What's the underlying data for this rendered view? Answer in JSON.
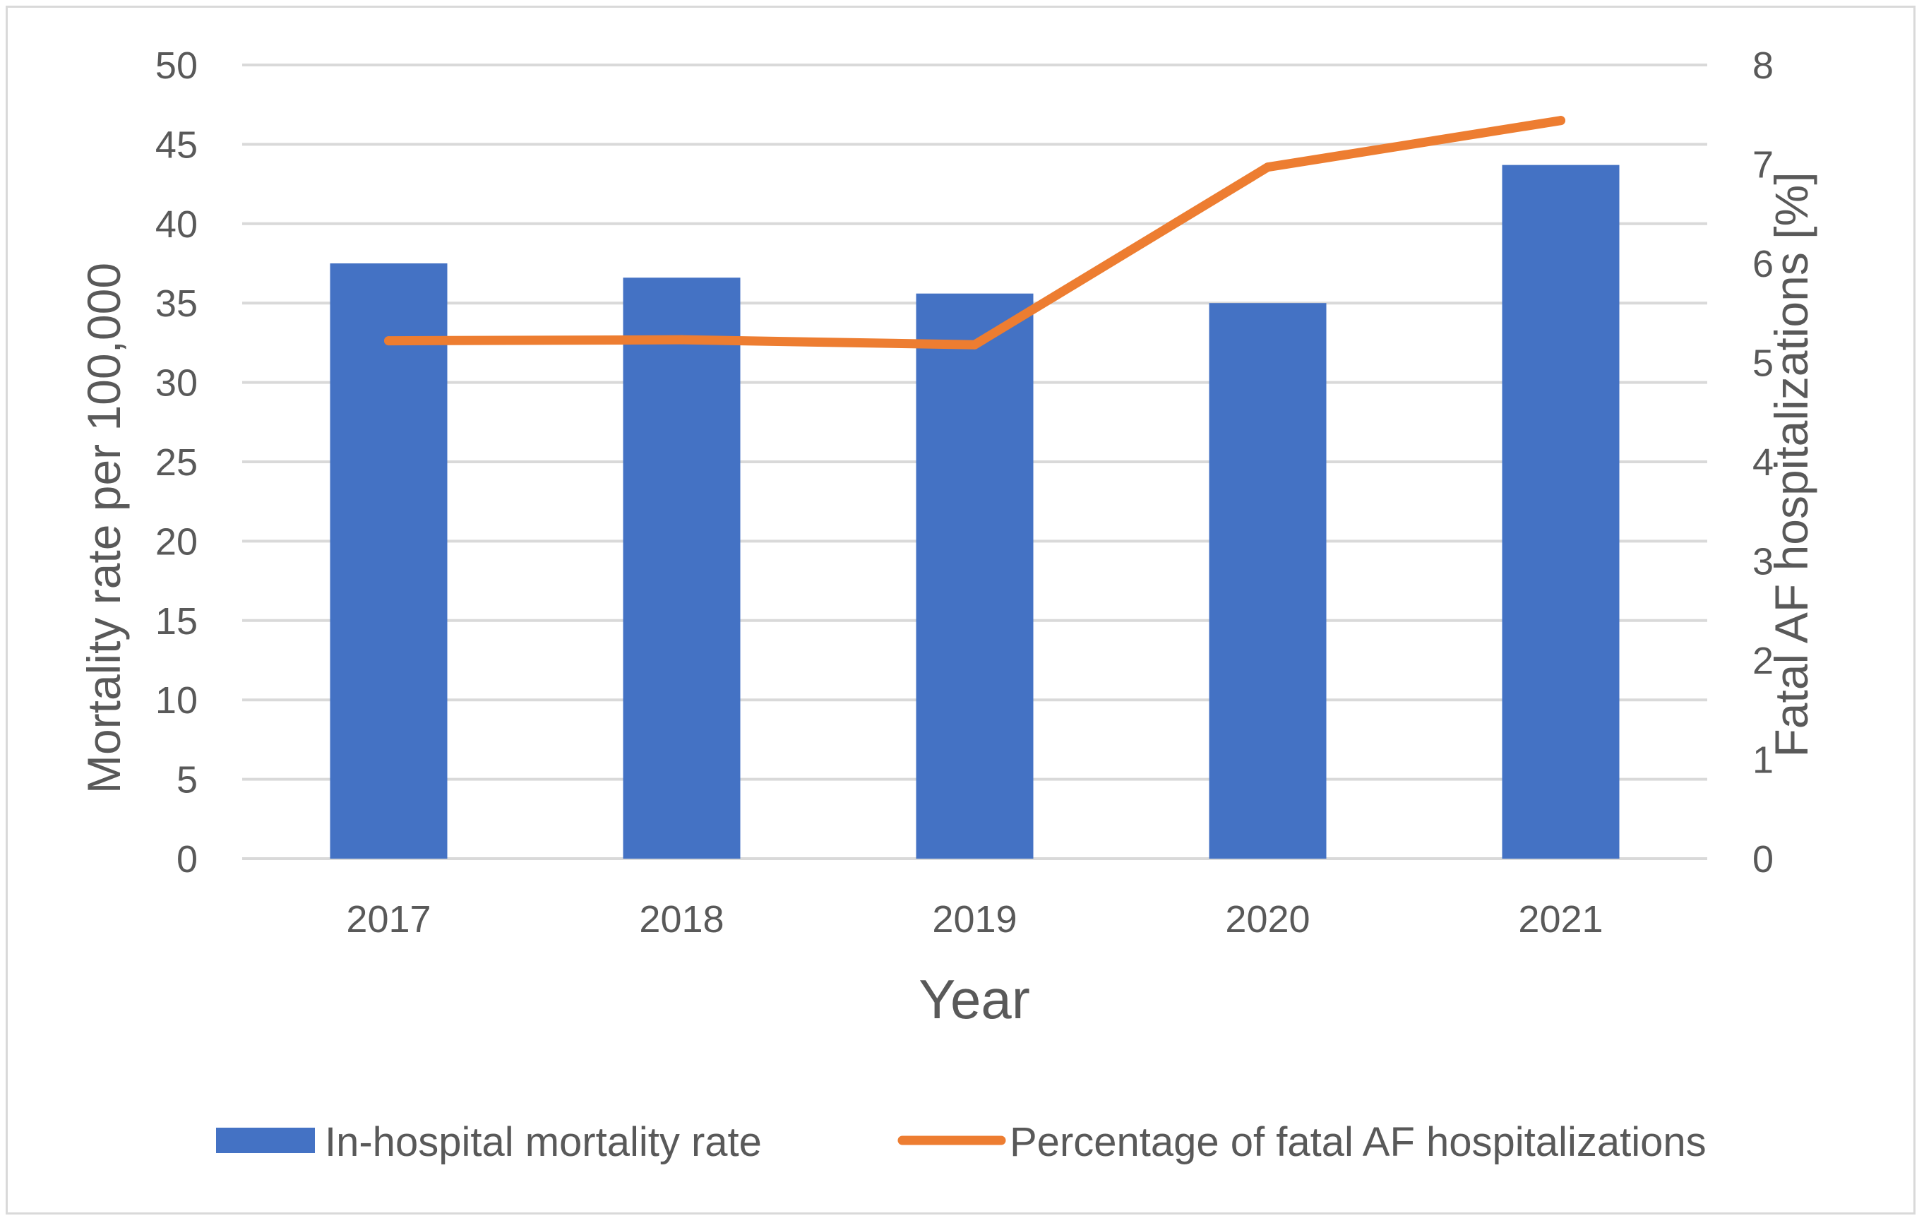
{
  "chart_data": {
    "type": "bar",
    "categories": [
      "2017",
      "2018",
      "2019",
      "2020",
      "2021"
    ],
    "series": [
      {
        "name": "In-hospital mortality rate",
        "type": "bar",
        "axis": "left",
        "color": "#4472C4",
        "values": [
          37.5,
          36.6,
          35.6,
          35.0,
          43.7
        ]
      },
      {
        "name": "Percentage of fatal AF hospitalizations",
        "type": "line",
        "axis": "right",
        "color": "#ED7D31",
        "values": [
          5.22,
          5.23,
          5.18,
          6.97,
          7.44
        ]
      }
    ],
    "title": "",
    "xlabel": "Year",
    "ylabel": "Mortality rate per 100,000",
    "y2label": "Fatal AF hospitalizations [%]",
    "ylim": [
      0,
      50
    ],
    "y2lim": [
      0,
      8
    ],
    "yticks": [
      "0",
      "5",
      "10",
      "15",
      "20",
      "25",
      "30",
      "35",
      "40",
      "45",
      "50"
    ],
    "y2ticks": [
      "0",
      "1",
      "2",
      "3",
      "4",
      "5",
      "6",
      "7",
      "8"
    ],
    "grid": true,
    "legend_position": "bottom"
  }
}
